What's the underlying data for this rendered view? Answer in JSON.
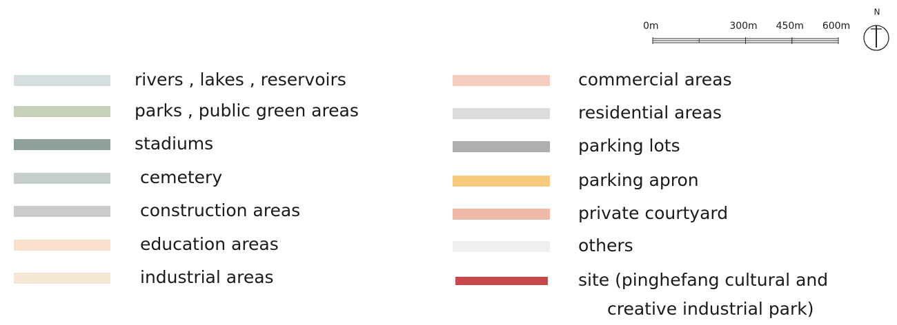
{
  "legend": {
    "left": [
      {
        "label": "rivers , lakes , reservoirs",
        "color": "#d6dfdf"
      },
      {
        "label": "parks , public green areas",
        "color": "#c6d1b9"
      },
      {
        "label": "stadiums",
        "color": "#8fa09d"
      },
      {
        "label": "cemetery",
        "color": "#c5cec9"
      },
      {
        "label": "construction areas",
        "color": "#cbcbcb"
      },
      {
        "label": "education areas",
        "color": "#f9dfcc"
      },
      {
        "label": "industrial areas",
        "color": "#f6e6d4"
      }
    ],
    "right": [
      {
        "label": [
          "commercial areas"
        ],
        "color": "#f4cdc0"
      },
      {
        "label": [
          "residential areas"
        ],
        "color": "#dcdcdc"
      },
      {
        "label": [
          "parking lots"
        ],
        "color": "#b0afb0"
      },
      {
        "label": [
          "parking apron"
        ],
        "color": "#f7ca7d"
      },
      {
        "label": [
          "private courtyard"
        ],
        "color": "#efb9a8"
      },
      {
        "label": [
          "others"
        ],
        "color": "#efefef"
      },
      {
        "label": [
          "site (pinghefang cultural and",
          "creative industrial park)"
        ],
        "color": "#c8474a"
      }
    ]
  },
  "scale": {
    "ticks": [
      {
        "value": 0,
        "label": "0m"
      },
      {
        "value": 300,
        "label": "300m"
      },
      {
        "value": 450,
        "label": "450m"
      },
      {
        "value": 600,
        "label": "600m"
      }
    ]
  },
  "north": "N"
}
